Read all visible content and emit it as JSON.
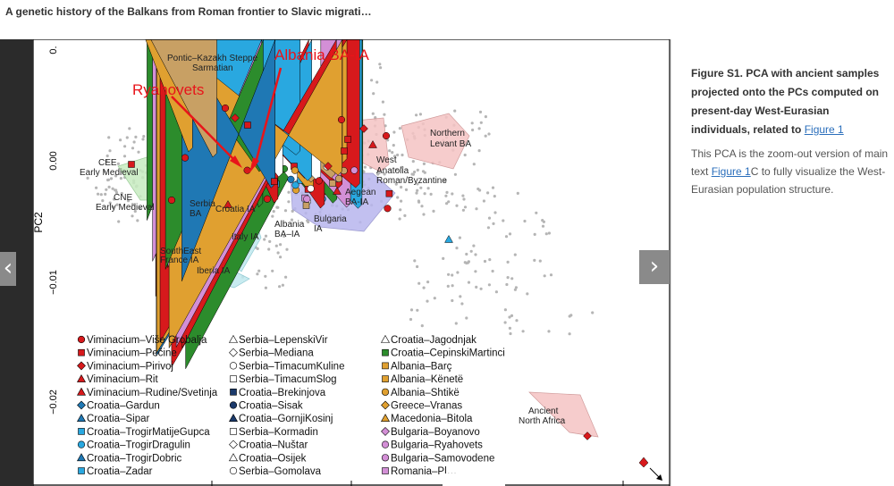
{
  "page": {
    "title": "A genetic history of the Balkans from Roman frontier to Slavic migrati…"
  },
  "nav": {
    "prev": "‹",
    "next": "›"
  },
  "caption": {
    "label": "Figure S1.",
    "title": "PCA with ancient samples projected onto the PCs computed on present-day West-Eurasian individuals, related to",
    "title_link": "Figure 1",
    "body_pre": "This PCA is the zoom-out version of main text",
    "body_link": "Figure 1",
    "body_post": "C to fully visualize the West-Eurasian population structure."
  },
  "plot": {
    "ylabel": "PC2",
    "yticks": [
      "0.",
      "0.00",
      "−0.01",
      "−0.02"
    ],
    "annotations": {
      "albania": "Albania BA-IA",
      "ryahovets": "Ryahovets"
    },
    "region_labels": {
      "pontic": "Pontic–Kazakh Steppe",
      "sarmatian": "Sarmatian",
      "northern_levant_1": "Northern",
      "northern_levant_2": "Levant BA",
      "cee_1": "CEE",
      "cee_2": "Early Medieval",
      "cne_1": "CNE",
      "cne_2": "Early Medieval",
      "west_anatolia_1": "West",
      "west_anatolia_2": "Anatolia",
      "roman_byz": "Roman/Byzantine",
      "aegean_1": "Aegean",
      "aegean_2": "BA-IA",
      "serbia_1": "Serbia",
      "serbia_2": "BA",
      "croatia_ia": "Croatia IA",
      "albania_1": "Albania",
      "albania_2": "BA–IA",
      "bulgaria_1": "Bulgaria",
      "bulgaria_2": "IA",
      "italy_ia": "Italy IA",
      "se_france_1": "SouthEast",
      "se_france_2": "France IA",
      "iberia_ia": "Iberia IA",
      "ancient_na_1": "Ancient",
      "ancient_na_2": "North Africa"
    },
    "legend_col1": [
      "Viminacium–Više Grobalja",
      "Viminacium–Pečine",
      "Viminacium–Pirivoj",
      "Viminacium–Rit",
      "Viminacium–Rudine/Svetinja",
      "Croatia–Gardun",
      "Croatia–Sipar",
      "Croatia–TrogirMatijeGupca",
      "Croatia–TrogirDragulin",
      "Croatia–TrogirDobric",
      "Croatia–Zadar"
    ],
    "legend_col2": [
      "Serbia–LepenskiVir",
      "Serbia–Mediana",
      "Serbia–TimacumKuline",
      "Serbia–TimacumSlog",
      "Croatia–Brekinjova",
      "Croatia–Sisak",
      "Croatia–GornjiKosinj",
      "Serbia–Kormadin",
      "Croatia–Nuštar",
      "Croatia–Osijek",
      "Serbia–Gomolava"
    ],
    "legend_col3": [
      "Croatia–Jagodnjak",
      "Croatia–CepinskiMartinci",
      "Albania–Barç",
      "Albania–Kënetë",
      "Albania–Shtikë",
      "Greece–Vranas",
      "Macedonia–Bitola",
      "Bulgaria–Boyanovo",
      "Bulgaria–Ryahovets",
      "Bulgaria–Samovodene",
      "Romania–Pl…"
    ],
    "colors": {
      "red": "#d7191c",
      "blue": "#1f78b4",
      "cyan": "#29a8e0",
      "tan": "#c8a064",
      "orange": "#e0a030",
      "pink": "#d38fd6",
      "green": "#2c8c2c",
      "grey": "#aaaaaa"
    }
  }
}
